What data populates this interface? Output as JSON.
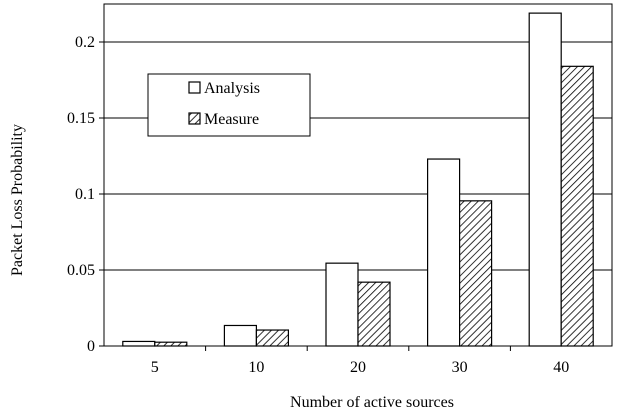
{
  "chart_data": {
    "type": "bar",
    "title": "",
    "xlabel": "Number of active sources",
    "ylabel": "Packet Loss Probability",
    "categories": [
      "5",
      "10",
      "20",
      "30",
      "40"
    ],
    "series": [
      {
        "name": "Analysis",
        "values": [
          0.003,
          0.0135,
          0.0545,
          0.123,
          0.219
        ],
        "fill": "#ffffff",
        "pattern": "none"
      },
      {
        "name": "Measure",
        "values": [
          0.0025,
          0.0105,
          0.042,
          0.0955,
          0.184
        ],
        "fill": "#ffffff",
        "pattern": "diagonal-hatch"
      }
    ],
    "ylim": [
      0,
      0.225
    ],
    "yticks": [
      0,
      0.05,
      0.1,
      0.15,
      0.2
    ],
    "ytick_labels": [
      "0",
      "0.05",
      "0.1",
      "0.15",
      "0.2"
    ],
    "grid": true,
    "legend_position": "upper-left"
  }
}
